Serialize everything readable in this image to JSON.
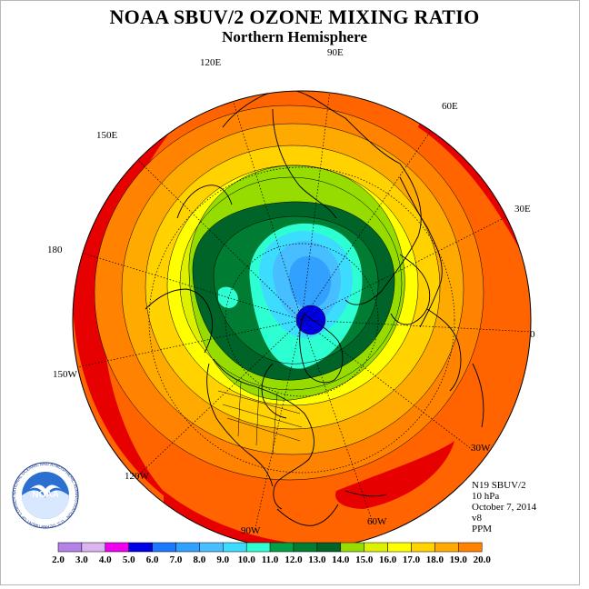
{
  "header": {
    "title": "NOAA SBUV/2 OZONE MIXING RATIO",
    "subtitle": "Northern Hemisphere"
  },
  "map": {
    "projection": "north-polar-stereographic",
    "longitude_labels": [
      "90E",
      "60E",
      "30E",
      "0",
      "30W",
      "60W",
      "90W",
      "120W",
      "150W",
      "180",
      "150E",
      "120E"
    ],
    "contour_levels_ppm": [
      6,
      7,
      8,
      9,
      10,
      11,
      12,
      13,
      14,
      15,
      16,
      17,
      18,
      19
    ],
    "pattern": "ozone minimum centered near north pole (about 6 ppm), increasing outward to about 19 ppm near the equator"
  },
  "info": {
    "satellite": "N19 SBUV/2",
    "level": "10 hPa",
    "date": "October 7, 2014",
    "version": "v8",
    "units": "PPM"
  },
  "logo": {
    "text": "NOAA",
    "ring_text": "NATIONAL OCEANIC AND ATMOSPHERIC ADMINISTRATION · U.S. DEPARTMENT OF COMMERCE"
  },
  "colorbar": {
    "labels": [
      "2.0",
      "3.0",
      "4.0",
      "5.0",
      "6.0",
      "7.0",
      "8.0",
      "9.0",
      "10.0",
      "11.0",
      "12.0",
      "13.0",
      "14.0",
      "15.0",
      "16.0",
      "17.0",
      "18.0",
      "19.0",
      "20.0"
    ],
    "colors": [
      "#b482e6",
      "#dcb4f0",
      "#f000f0",
      "#0000e6",
      "#1e78ff",
      "#32a0ff",
      "#46beff",
      "#3cdcff",
      "#2dffd2",
      "#00a046",
      "#007d32",
      "#006428",
      "#96dc00",
      "#dcf000",
      "#ffff00",
      "#ffd200",
      "#ffaa00",
      "#ff8200",
      "#ff6400",
      "#e60000",
      "#a05028"
    ]
  }
}
